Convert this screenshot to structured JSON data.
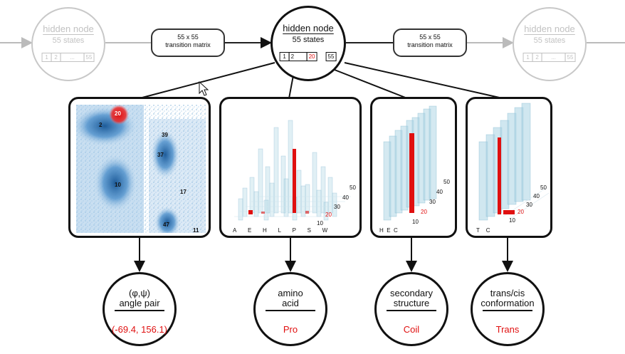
{
  "hidden_nodes": [
    {
      "name": "hidden node",
      "states": "55 states",
      "cells": [
        "1",
        "2",
        "...",
        "55"
      ]
    },
    {
      "name": "hidden node",
      "states": "55 states",
      "cells": [
        "1",
        "2",
        "20",
        "55"
      ]
    },
    {
      "name": "hidden node",
      "states": "55 states",
      "cells": [
        "1",
        "2",
        "...",
        "55"
      ]
    }
  ],
  "transitions": [
    {
      "line1": "55 x 55",
      "line2": "transition matrix"
    },
    {
      "line1": "55 x 55",
      "line2": "transition matrix"
    }
  ],
  "panels": {
    "ramachandran": {
      "cluster_labels": [
        "20",
        "2",
        "39",
        "37",
        "10",
        "17",
        "47",
        "11"
      ]
    },
    "amino_acid": {
      "x_labels": [
        "A",
        "E",
        "H",
        "L",
        "P",
        "S",
        "W"
      ],
      "depth_labels": [
        "50",
        "40",
        "30",
        "20",
        "10"
      ],
      "highlight_state": "20"
    },
    "secondary": {
      "x_labels": [
        "H",
        "E",
        "C"
      ],
      "depth_labels": [
        "50",
        "40",
        "30",
        "20",
        "10"
      ],
      "highlight_state": "20"
    },
    "transcis": {
      "x_labels": [
        "T",
        "C"
      ],
      "depth_labels": [
        "50",
        "40",
        "30",
        "20",
        "10"
      ],
      "highlight_state": "20"
    }
  },
  "observations": [
    {
      "line1": "(φ,ψ)",
      "line2": "angle pair",
      "value": "(-69.4, 156.1)"
    },
    {
      "line1": "amino",
      "line2": "acid",
      "value": "Pro"
    },
    {
      "line1": "secondary",
      "line2": "structure",
      "value": "Coil"
    },
    {
      "line1": "trans/cis",
      "line2": "conformation",
      "value": "Trans"
    }
  ],
  "colors": {
    "highlight": "#e01010",
    "bar": "#a9d4e3",
    "faded": "#c8c8c8"
  }
}
